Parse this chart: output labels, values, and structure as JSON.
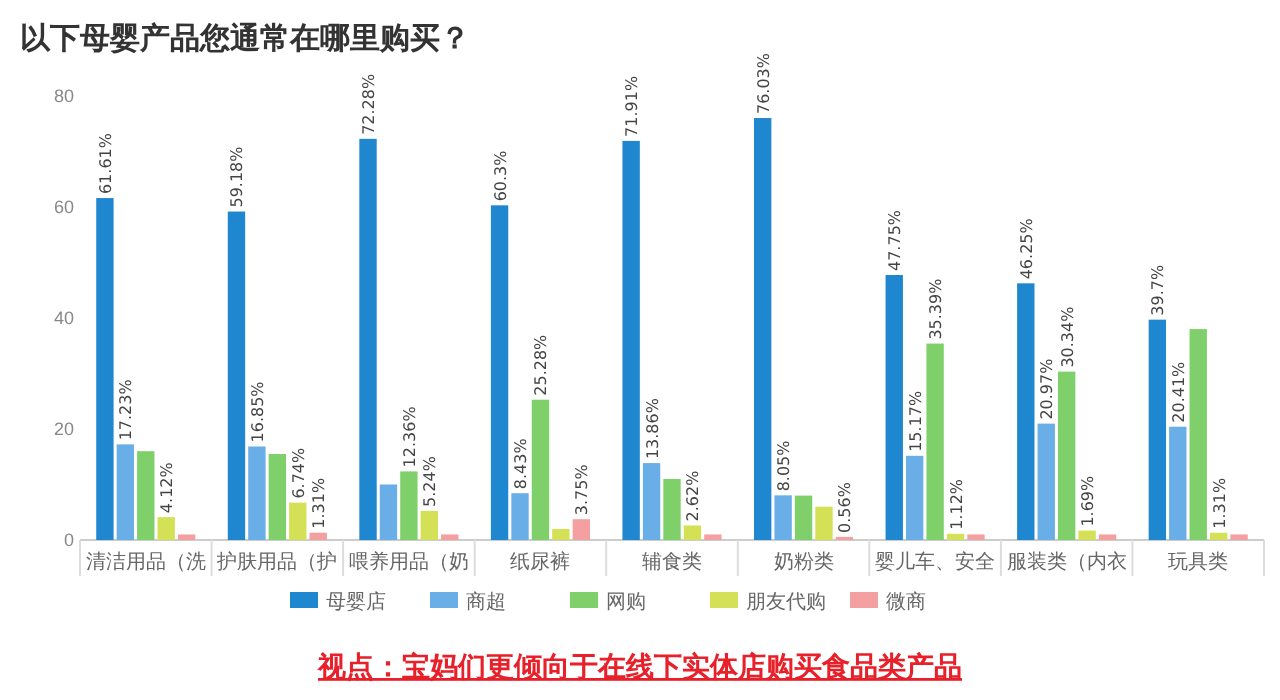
{
  "chart_data": {
    "type": "bar",
    "title": "以下母婴产品您通常在哪里购买？",
    "categories": [
      "清洁用品（洗",
      "护肤用品（护",
      "喂养用品（奶",
      "纸尿裤",
      "辅食类",
      "奶粉类",
      "婴儿车、安全",
      "服装类（内衣",
      "玩具类"
    ],
    "series": [
      {
        "name": "母婴店",
        "color": "#1f86d0",
        "values": [
          61.61,
          59.18,
          72.28,
          60.3,
          71.91,
          76.03,
          47.75,
          46.25,
          39.7
        ],
        "value_labels": [
          "61.61%",
          "59.18%",
          "72.28%",
          "60.3%",
          "71.91%",
          "76.03%",
          "47.75%",
          "46.25%",
          "39.7%"
        ]
      },
      {
        "name": "商超",
        "color": "#6aaee8",
        "values": [
          17.23,
          16.85,
          10,
          8.43,
          13.86,
          8.05,
          15.17,
          20.97,
          20.41
        ],
        "value_labels": [
          "17.23%",
          "16.85%",
          null,
          "8.43%",
          "13.86%",
          "8.05%",
          "15.17%",
          "20.97%",
          "20.41%"
        ]
      },
      {
        "name": "网购",
        "color": "#7fd06a",
        "values": [
          16,
          15.5,
          12.36,
          25.28,
          11,
          8,
          35.39,
          30.34,
          38
        ],
        "value_labels": [
          null,
          null,
          "12.36%",
          "25.28%",
          null,
          null,
          "35.39%",
          "30.34%",
          null
        ]
      },
      {
        "name": "朋友代购",
        "color": "#d4e157",
        "values": [
          4.12,
          6.74,
          5.24,
          2,
          2.62,
          6,
          1.12,
          1.69,
          1.31
        ],
        "value_labels": [
          "4.12%",
          "6.74%",
          "5.24%",
          null,
          "2.62%",
          null,
          "1.12%",
          "1.69%",
          "1.31%"
        ]
      },
      {
        "name": "微商",
        "color": "#f4a0a0",
        "values": [
          1,
          1.31,
          1,
          3.75,
          1,
          0.56,
          1,
          1,
          1
        ],
        "value_labels": [
          null,
          "1.31%",
          null,
          "3.75%",
          null,
          "0.56%",
          null,
          null,
          null
        ]
      }
    ],
    "ylim": [
      0,
      80
    ],
    "yticks": [
      0,
      20,
      40,
      60,
      80
    ],
    "grid": false,
    "legend": "bottom",
    "annotations": [
      "视点：宝妈们更倾向于在线下实体店购买食品类产品"
    ]
  }
}
